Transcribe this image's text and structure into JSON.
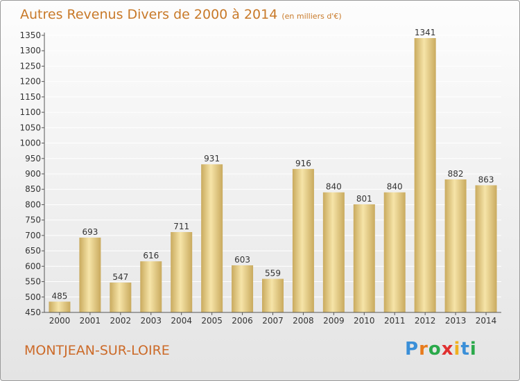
{
  "title": {
    "main": "Autres Revenus Divers de 2000 à 2014",
    "sub": "(en milliers d'€)"
  },
  "place": "MONTJEAN-SUR-LOIRE",
  "logo": {
    "letters": [
      "P",
      "r",
      "o",
      "x",
      "i",
      "t",
      "i"
    ],
    "colors": [
      "#3a8fd8",
      "#e87b1c",
      "#2aa94a",
      "#e03030",
      "#f0b020",
      "#3a8fd8",
      "#2aa94a"
    ]
  },
  "colors": {
    "bar_light": "#f6e4a8",
    "bar_dark": "#c9aa5e",
    "grid": "#ffffff",
    "axis": "#555555",
    "title": "#c87928"
  },
  "chart_data": {
    "type": "bar",
    "categories": [
      "2000",
      "2001",
      "2002",
      "2003",
      "2004",
      "2005",
      "2006",
      "2007",
      "2008",
      "2009",
      "2010",
      "2011",
      "2012",
      "2013",
      "2014"
    ],
    "values": [
      485,
      693,
      547,
      616,
      711,
      931,
      603,
      559,
      916,
      840,
      801,
      840,
      1341,
      882,
      863
    ],
    "yticks": [
      450,
      500,
      550,
      600,
      650,
      700,
      750,
      800,
      850,
      900,
      950,
      1000,
      1050,
      1100,
      1150,
      1200,
      1250,
      1300,
      1350
    ],
    "ylim": [
      450,
      1350
    ],
    "grid": true
  }
}
